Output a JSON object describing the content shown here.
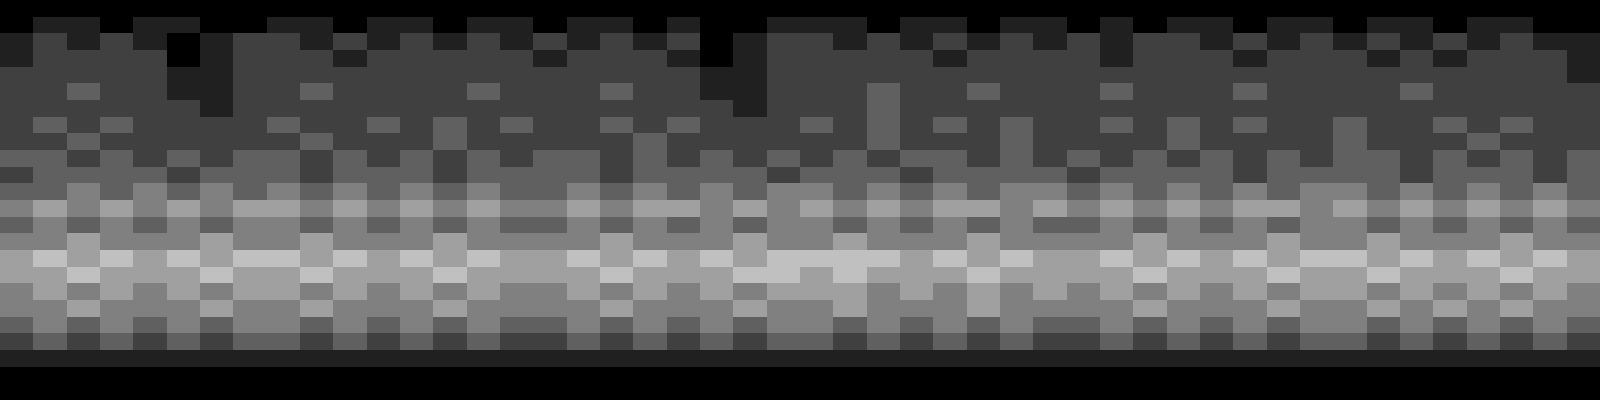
{
  "chart_data": {
    "type": "heatmap",
    "tick_labels": false,
    "color": "gray",
    "value_range": [
      0,
      8
    ],
    "cells": [
      [
        0,
        0,
        0,
        0,
        0,
        0,
        0,
        0,
        0,
        0,
        0,
        0,
        0,
        0,
        0,
        0,
        0,
        0,
        0,
        0,
        0,
        0,
        0,
        0,
        0,
        0,
        0,
        0,
        0,
        0,
        0,
        0,
        0,
        0,
        0,
        0,
        0,
        0,
        0,
        0,
        0,
        0,
        0,
        0,
        0,
        0,
        0,
        0
      ],
      [
        0,
        1,
        1,
        0,
        1,
        1,
        0,
        0,
        1,
        1,
        0,
        1,
        1,
        0,
        1,
        1,
        0,
        1,
        1,
        0,
        1,
        0,
        0,
        1,
        1,
        1,
        0,
        1,
        1,
        0,
        1,
        1,
        0,
        1,
        0,
        1,
        1,
        0,
        1,
        1,
        0,
        1,
        1,
        0,
        1,
        1,
        0,
        0
      ],
      [
        1,
        2,
        1,
        2,
        1,
        0,
        1,
        2,
        2,
        1,
        2,
        1,
        2,
        1,
        2,
        1,
        2,
        1,
        2,
        1,
        2,
        0,
        1,
        2,
        2,
        1,
        2,
        1,
        2,
        1,
        2,
        1,
        2,
        1,
        2,
        2,
        1,
        2,
        1,
        2,
        1,
        2,
        1,
        2,
        1,
        2,
        1,
        1
      ],
      [
        1,
        2,
        2,
        2,
        2,
        0,
        1,
        2,
        2,
        2,
        1,
        2,
        2,
        2,
        2,
        2,
        1,
        2,
        2,
        2,
        1,
        0,
        1,
        2,
        2,
        2,
        2,
        2,
        1,
        2,
        2,
        2,
        2,
        1,
        2,
        2,
        2,
        1,
        2,
        2,
        2,
        1,
        2,
        1,
        2,
        2,
        2,
        1
      ],
      [
        2,
        2,
        2,
        2,
        2,
        1,
        1,
        2,
        2,
        2,
        2,
        2,
        2,
        2,
        2,
        2,
        2,
        2,
        2,
        2,
        2,
        1,
        1,
        2,
        2,
        2,
        2,
        2,
        2,
        2,
        2,
        2,
        2,
        2,
        2,
        2,
        2,
        2,
        2,
        2,
        2,
        2,
        2,
        2,
        2,
        2,
        2,
        1
      ],
      [
        2,
        2,
        3,
        2,
        2,
        1,
        1,
        2,
        2,
        3,
        2,
        2,
        2,
        2,
        3,
        2,
        2,
        2,
        3,
        2,
        2,
        1,
        1,
        2,
        2,
        2,
        3,
        2,
        2,
        3,
        2,
        2,
        2,
        3,
        2,
        2,
        2,
        3,
        2,
        2,
        2,
        2,
        3,
        2,
        2,
        2,
        2,
        2
      ],
      [
        2,
        2,
        2,
        2,
        2,
        2,
        1,
        2,
        2,
        2,
        2,
        2,
        2,
        2,
        2,
        2,
        2,
        2,
        2,
        2,
        2,
        2,
        1,
        2,
        2,
        2,
        3,
        2,
        2,
        2,
        2,
        2,
        2,
        2,
        2,
        2,
        2,
        2,
        2,
        2,
        2,
        2,
        2,
        2,
        2,
        2,
        2,
        2
      ],
      [
        2,
        3,
        2,
        3,
        2,
        2,
        2,
        2,
        3,
        2,
        2,
        3,
        2,
        3,
        2,
        3,
        2,
        2,
        3,
        2,
        3,
        2,
        2,
        2,
        3,
        2,
        3,
        2,
        3,
        2,
        3,
        2,
        2,
        3,
        2,
        3,
        2,
        3,
        2,
        2,
        3,
        2,
        2,
        3,
        2,
        3,
        2,
        2
      ],
      [
        2,
        2,
        3,
        2,
        2,
        2,
        2,
        2,
        2,
        3,
        2,
        2,
        2,
        3,
        2,
        2,
        2,
        2,
        2,
        3,
        2,
        2,
        2,
        2,
        2,
        2,
        3,
        2,
        2,
        2,
        3,
        2,
        2,
        2,
        2,
        3,
        2,
        2,
        2,
        2,
        3,
        2,
        2,
        2,
        3,
        2,
        2,
        2
      ],
      [
        3,
        3,
        2,
        3,
        2,
        3,
        2,
        3,
        3,
        2,
        3,
        2,
        3,
        2,
        3,
        2,
        3,
        3,
        2,
        3,
        2,
        3,
        2,
        3,
        2,
        3,
        2,
        3,
        3,
        2,
        3,
        2,
        3,
        2,
        3,
        2,
        3,
        2,
        3,
        2,
        3,
        3,
        2,
        3,
        2,
        3,
        2,
        3
      ],
      [
        2,
        3,
        3,
        3,
        3,
        2,
        3,
        3,
        3,
        2,
        3,
        3,
        3,
        2,
        3,
        3,
        3,
        3,
        2,
        3,
        3,
        3,
        3,
        2,
        3,
        3,
        3,
        2,
        3,
        3,
        3,
        3,
        2,
        3,
        3,
        3,
        3,
        2,
        3,
        3,
        3,
        3,
        2,
        3,
        3,
        3,
        2,
        3
      ],
      [
        3,
        3,
        4,
        3,
        4,
        3,
        4,
        3,
        4,
        3,
        4,
        3,
        4,
        3,
        4,
        3,
        3,
        4,
        3,
        4,
        3,
        4,
        3,
        4,
        4,
        3,
        4,
        3,
        4,
        3,
        4,
        4,
        3,
        4,
        3,
        4,
        3,
        4,
        3,
        4,
        4,
        3,
        4,
        3,
        4,
        3,
        4,
        3
      ],
      [
        4,
        5,
        4,
        5,
        4,
        5,
        4,
        5,
        5,
        4,
        5,
        4,
        5,
        4,
        5,
        4,
        4,
        5,
        4,
        5,
        5,
        4,
        5,
        4,
        5,
        4,
        5,
        4,
        5,
        5,
        4,
        5,
        4,
        5,
        4,
        5,
        4,
        5,
        5,
        4,
        5,
        4,
        5,
        4,
        5,
        4,
        5,
        4
      ],
      [
        3,
        4,
        3,
        4,
        3,
        4,
        3,
        4,
        4,
        3,
        4,
        3,
        4,
        3,
        4,
        3,
        3,
        4,
        3,
        4,
        3,
        4,
        3,
        4,
        4,
        3,
        4,
        3,
        4,
        3,
        4,
        3,
        3,
        4,
        3,
        4,
        3,
        4,
        3,
        4,
        4,
        3,
        4,
        3,
        4,
        3,
        4,
        3
      ],
      [
        4,
        4,
        5,
        4,
        4,
        4,
        5,
        4,
        4,
        5,
        4,
        4,
        4,
        5,
        4,
        4,
        4,
        4,
        5,
        4,
        4,
        4,
        5,
        4,
        4,
        5,
        4,
        4,
        4,
        5,
        4,
        4,
        4,
        4,
        5,
        4,
        4,
        4,
        5,
        4,
        4,
        5,
        4,
        4,
        4,
        5,
        4,
        4
      ],
      [
        5,
        6,
        5,
        6,
        5,
        6,
        5,
        6,
        6,
        5,
        6,
        5,
        6,
        5,
        6,
        5,
        5,
        6,
        5,
        6,
        5,
        6,
        5,
        6,
        6,
        6,
        6,
        5,
        6,
        5,
        6,
        5,
        5,
        6,
        5,
        6,
        5,
        6,
        5,
        6,
        6,
        5,
        6,
        5,
        6,
        5,
        6,
        5
      ],
      [
        5,
        5,
        6,
        5,
        5,
        5,
        6,
        5,
        5,
        6,
        5,
        5,
        5,
        6,
        5,
        5,
        5,
        5,
        6,
        5,
        5,
        5,
        6,
        6,
        5,
        6,
        5,
        5,
        5,
        6,
        5,
        5,
        5,
        5,
        6,
        5,
        5,
        5,
        6,
        5,
        5,
        6,
        5,
        5,
        5,
        6,
        5,
        5
      ],
      [
        4,
        5,
        4,
        5,
        4,
        5,
        4,
        5,
        5,
        4,
        5,
        4,
        5,
        4,
        5,
        4,
        4,
        5,
        4,
        5,
        4,
        5,
        4,
        5,
        5,
        5,
        4,
        5,
        4,
        5,
        4,
        5,
        4,
        5,
        4,
        5,
        4,
        5,
        4,
        5,
        5,
        4,
        5,
        4,
        5,
        4,
        5,
        4
      ],
      [
        4,
        4,
        5,
        4,
        4,
        4,
        5,
        4,
        4,
        5,
        4,
        4,
        4,
        5,
        4,
        4,
        4,
        4,
        5,
        4,
        4,
        4,
        5,
        4,
        4,
        5,
        4,
        4,
        4,
        5,
        4,
        4,
        4,
        4,
        5,
        4,
        4,
        4,
        5,
        4,
        4,
        5,
        4,
        5,
        4,
        5,
        4,
        4
      ],
      [
        3,
        4,
        3,
        4,
        3,
        4,
        3,
        4,
        4,
        3,
        4,
        3,
        4,
        3,
        4,
        3,
        3,
        4,
        3,
        4,
        3,
        4,
        3,
        4,
        4,
        3,
        4,
        3,
        4,
        3,
        4,
        3,
        3,
        4,
        3,
        4,
        3,
        4,
        3,
        4,
        4,
        3,
        4,
        3,
        4,
        3,
        4,
        3
      ],
      [
        2,
        3,
        2,
        3,
        2,
        3,
        2,
        3,
        3,
        2,
        3,
        2,
        3,
        2,
        3,
        2,
        2,
        3,
        2,
        3,
        2,
        3,
        2,
        3,
        3,
        2,
        3,
        2,
        3,
        2,
        3,
        2,
        2,
        3,
        2,
        3,
        2,
        3,
        2,
        3,
        3,
        2,
        3,
        2,
        3,
        2,
        3,
        2
      ],
      [
        1,
        1,
        1,
        1,
        1,
        1,
        1,
        1,
        1,
        1,
        1,
        1,
        1,
        1,
        1,
        1,
        1,
        1,
        1,
        1,
        1,
        1,
        1,
        1,
        1,
        1,
        1,
        1,
        1,
        1,
        1,
        1,
        1,
        1,
        1,
        1,
        1,
        1,
        1,
        1,
        1,
        1,
        1,
        1,
        1,
        1,
        1,
        1
      ],
      [
        0,
        0,
        0,
        0,
        0,
        0,
        0,
        0,
        0,
        0,
        0,
        0,
        0,
        0,
        0,
        0,
        0,
        0,
        0,
        0,
        0,
        0,
        0,
        0,
        0,
        0,
        0,
        0,
        0,
        0,
        0,
        0,
        0,
        0,
        0,
        0,
        0,
        0,
        0,
        0,
        0,
        0,
        0,
        0,
        0,
        0,
        0,
        0
      ],
      [
        0,
        0,
        0,
        0,
        0,
        0,
        0,
        0,
        0,
        0,
        0,
        0,
        0,
        0,
        0,
        0,
        0,
        0,
        0,
        0,
        0,
        0,
        0,
        0,
        0,
        0,
        0,
        0,
        0,
        0,
        0,
        0,
        0,
        0,
        0,
        0,
        0,
        0,
        0,
        0,
        0,
        0,
        0,
        0,
        0,
        0,
        0,
        0
      ]
    ]
  }
}
